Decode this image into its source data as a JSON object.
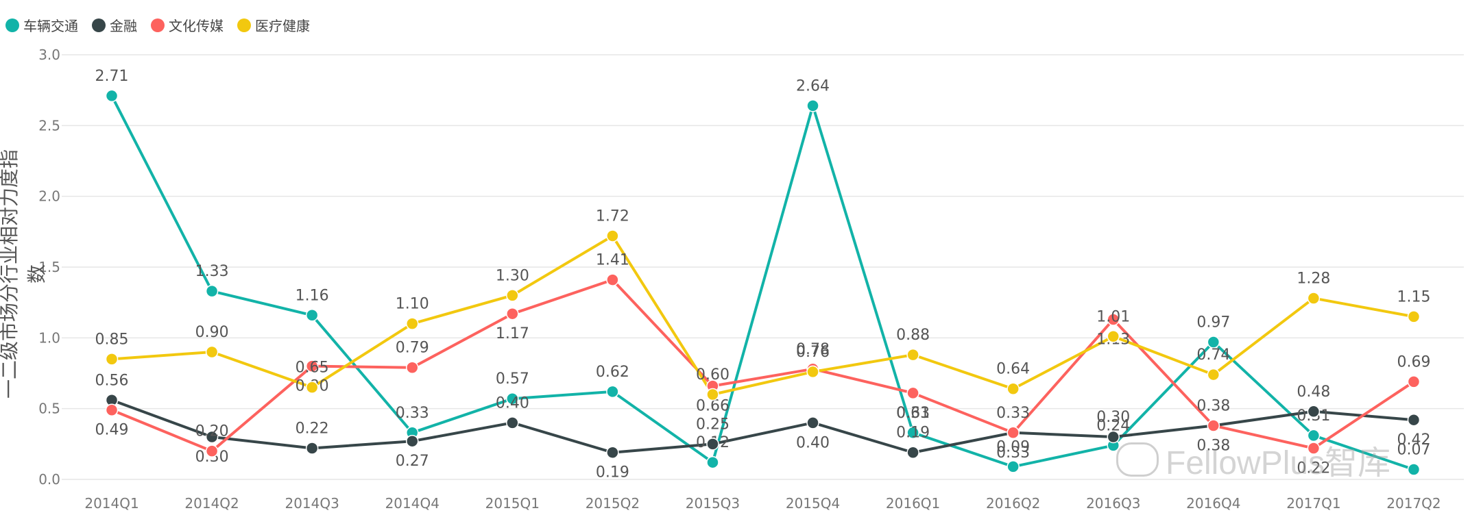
{
  "chart_data": {
    "type": "line",
    "ylabel": "一二级市场分行业相对力度指数",
    "ylim": [
      0,
      3.0
    ],
    "yticks": [
      "0.0",
      "0.5",
      "1.0",
      "1.5",
      "2.0",
      "2.5",
      "3.0"
    ],
    "categories": [
      "2014Q1",
      "2014Q2",
      "2014Q3",
      "2014Q4",
      "2015Q1",
      "2015Q2",
      "2015Q3",
      "2015Q4",
      "2016Q1",
      "2016Q2",
      "2016Q3",
      "2016Q4",
      "2017Q1",
      "2017Q2"
    ],
    "series": [
      {
        "name": "车辆交通",
        "color": "#12b3a8",
        "values": [
          2.71,
          1.33,
          1.16,
          0.33,
          0.57,
          0.62,
          0.12,
          2.64,
          0.33,
          0.09,
          0.24,
          0.97,
          0.31,
          0.07
        ]
      },
      {
        "name": "金融",
        "color": "#374649",
        "values": [
          0.56,
          0.3,
          0.22,
          0.27,
          0.4,
          0.19,
          0.25,
          0.4,
          0.19,
          0.33,
          0.3,
          0.38,
          0.48,
          0.42
        ]
      },
      {
        "name": "文化传媒",
        "color": "#fd625e",
        "values": [
          0.49,
          0.2,
          0.8,
          0.79,
          1.17,
          1.41,
          0.66,
          0.78,
          0.61,
          0.33,
          1.13,
          0.38,
          0.22,
          0.69
        ]
      },
      {
        "name": "医疗健康",
        "color": "#f2c80f",
        "values": [
          0.85,
          0.9,
          0.65,
          1.1,
          1.3,
          1.72,
          0.6,
          0.76,
          0.88,
          0.64,
          1.01,
          0.74,
          1.28,
          1.15
        ]
      }
    ]
  },
  "legend": {
    "items": [
      {
        "label": "车辆交通",
        "color": "#12b3a8"
      },
      {
        "label": "金融",
        "color": "#374649"
      },
      {
        "label": "文化传媒",
        "color": "#fd625e"
      },
      {
        "label": "医疗健康",
        "color": "#f2c80f"
      }
    ]
  },
  "watermark": {
    "text": "FellowPlus智库"
  }
}
